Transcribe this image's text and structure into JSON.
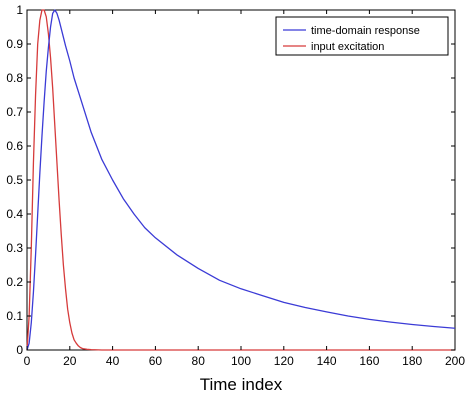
{
  "chart_data": {
    "type": "line",
    "title": "",
    "xlabel": "Time index",
    "ylabel": "",
    "xlim": [
      0,
      200
    ],
    "ylim": [
      0,
      1
    ],
    "xticks": [
      0,
      20,
      40,
      60,
      80,
      100,
      120,
      140,
      160,
      180,
      200
    ],
    "yticks": [
      0,
      0.1,
      0.2,
      0.3,
      0.4,
      0.5,
      0.6,
      0.7,
      0.8,
      0.9,
      1
    ],
    "ytick_labels": [
      "0",
      "0.1",
      "0.2",
      "0.3",
      "0.4",
      "0.5",
      "0.6",
      "0.7",
      "0.8",
      "0.9",
      "1"
    ],
    "grid": false,
    "legend_position": "top-right",
    "series": [
      {
        "name": "time-domain response",
        "color": "#3b3bd6",
        "x": [
          0,
          1,
          2,
          3,
          4,
          5,
          6,
          7,
          8,
          9,
          10,
          11,
          12,
          13,
          14,
          15,
          16,
          17,
          18,
          20,
          22,
          24,
          26,
          28,
          30,
          35,
          40,
          45,
          50,
          55,
          60,
          70,
          80,
          90,
          100,
          110,
          120,
          130,
          140,
          150,
          160,
          170,
          180,
          190,
          200
        ],
        "y": [
          0,
          0.02,
          0.08,
          0.17,
          0.28,
          0.4,
          0.52,
          0.63,
          0.73,
          0.82,
          0.89,
          0.95,
          0.99,
          1.0,
          0.99,
          0.97,
          0.945,
          0.92,
          0.895,
          0.85,
          0.8,
          0.76,
          0.72,
          0.68,
          0.64,
          0.56,
          0.5,
          0.445,
          0.4,
          0.36,
          0.33,
          0.28,
          0.24,
          0.205,
          0.18,
          0.16,
          0.14,
          0.125,
          0.112,
          0.1,
          0.09,
          0.082,
          0.075,
          0.069,
          0.064
        ]
      },
      {
        "name": "input excitation",
        "color": "#d63b3b",
        "x": [
          0,
          1,
          2,
          3,
          4,
          5,
          6,
          7,
          8,
          9,
          10,
          11,
          12,
          13,
          14,
          15,
          16,
          17,
          18,
          19,
          20,
          21,
          22,
          23,
          24,
          25,
          26,
          28,
          30,
          35,
          40,
          60,
          100,
          150,
          200
        ],
        "y": [
          0,
          0.1,
          0.3,
          0.55,
          0.75,
          0.9,
          0.97,
          1.0,
          1.0,
          0.98,
          0.93,
          0.86,
          0.77,
          0.66,
          0.55,
          0.44,
          0.34,
          0.25,
          0.18,
          0.12,
          0.08,
          0.05,
          0.03,
          0.02,
          0.012,
          0.007,
          0.004,
          0.002,
          0.001,
          0,
          0,
          0,
          0,
          0,
          0
        ]
      }
    ]
  }
}
